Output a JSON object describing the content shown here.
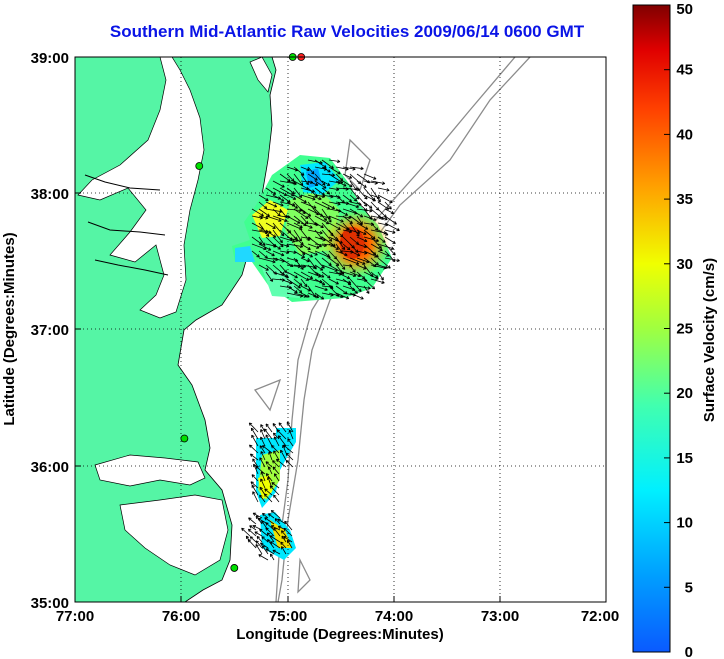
{
  "title": "Southern Mid-Atlantic Raw Velocities 2009/06/14 0600 GMT",
  "map": {
    "xlabel": "Longitude (Degrees:Minutes)",
    "ylabel": "Latitude (Degrees:Minutes)",
    "x_ticks": [
      "77:00",
      "76:00",
      "75:00",
      "74:00",
      "73:00",
      "72:00"
    ],
    "y_ticks": [
      "39:00",
      "38:00",
      "37:00",
      "36:00",
      "35:00"
    ],
    "lon_range": [
      -77,
      -72
    ],
    "lat_range": [
      35,
      39
    ],
    "grid": true,
    "land_color": "#55f5a5",
    "contour_color": "#8c8c8c",
    "site_markers": [
      {
        "lon": -74.87,
        "lat": 39.0,
        "color": "#ff2020"
      },
      {
        "lon": -74.95,
        "lat": 39.0,
        "color": "#00e000"
      },
      {
        "lon": -75.83,
        "lat": 38.2,
        "color": "#00e000"
      },
      {
        "lon": -75.97,
        "lat": 36.2,
        "color": "#00e000"
      },
      {
        "lon": -75.5,
        "lat": 35.25,
        "color": "#00e000"
      }
    ]
  },
  "colorbar": {
    "label": "Surface Velocity (cm/s)",
    "ticks": [
      "0",
      "5",
      "10",
      "15",
      "20",
      "25",
      "30",
      "35",
      "40",
      "45",
      "50"
    ],
    "range": [
      0,
      50
    ],
    "colormap": "jet"
  }
}
